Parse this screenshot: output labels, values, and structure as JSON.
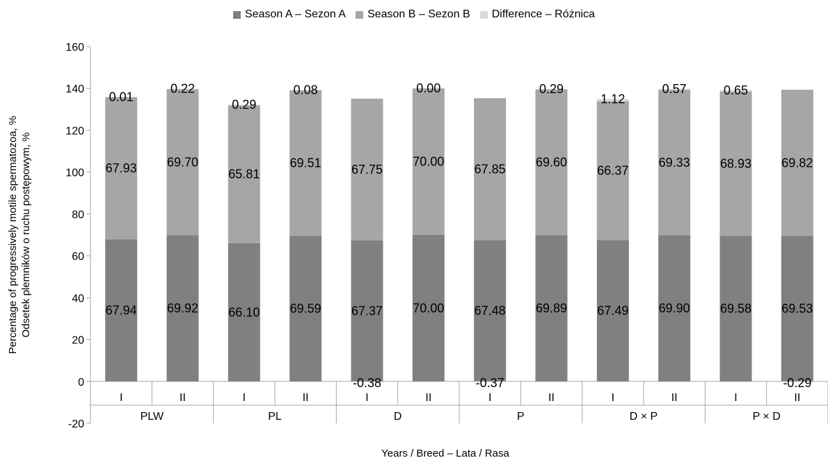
{
  "chart_data": {
    "type": "bar",
    "stacked": true,
    "legend_position": "top",
    "grid": false,
    "xlabel": "Years / Breed – Lata / Rasa",
    "ylabel_line1": "Percentage of progressively motile spermatozoa, %",
    "ylabel_line2": "Odsetek plemników o ruchu postępowym, %",
    "ylim": [
      -20,
      160
    ],
    "yticks": [
      -20,
      0,
      20,
      40,
      60,
      80,
      100,
      120,
      140,
      160
    ],
    "groups": [
      "PLW",
      "PL",
      "D",
      "P",
      "D × P",
      "P × D"
    ],
    "categories": [
      "I",
      "II",
      "I",
      "II",
      "I",
      "II",
      "I",
      "II",
      "I",
      "II",
      "I",
      "II"
    ],
    "series": [
      {
        "name": "Season A – Sezon A",
        "color": "#808080",
        "values": [
          67.94,
          69.92,
          66.1,
          69.59,
          67.37,
          70.0,
          67.48,
          69.89,
          67.49,
          69.9,
          69.58,
          69.53
        ],
        "labels": [
          "67.94",
          "69.92",
          "66.10",
          "69.59",
          "67.37",
          "70.00",
          "67.48",
          "69.89",
          "67.49",
          "69.90",
          "69.58",
          "69.53"
        ]
      },
      {
        "name": "Season B – Sezon B",
        "color": "#a6a6a6",
        "values": [
          67.93,
          69.7,
          65.81,
          69.51,
          67.75,
          70.0,
          67.85,
          69.6,
          66.37,
          69.33,
          68.93,
          69.82
        ],
        "labels": [
          "67.93",
          "69.70",
          "65.81",
          "69.51",
          "67.75",
          "70.00",
          "67.85",
          "69.60",
          "66.37",
          "69.33",
          "68.93",
          "69.82"
        ]
      },
      {
        "name": "Difference – Różnica",
        "color": "#d9d9d9",
        "values": [
          0.01,
          0.22,
          0.29,
          0.08,
          -0.38,
          0.0,
          -0.37,
          0.29,
          1.12,
          0.57,
          0.65,
          -0.29
        ],
        "labels": [
          "0.01",
          "0.22",
          "0.29",
          "0.08",
          "-0.38",
          "0.00",
          "-0.37",
          "0.29",
          "1.12",
          "0.57",
          "0.65",
          "-0.29"
        ]
      }
    ]
  }
}
